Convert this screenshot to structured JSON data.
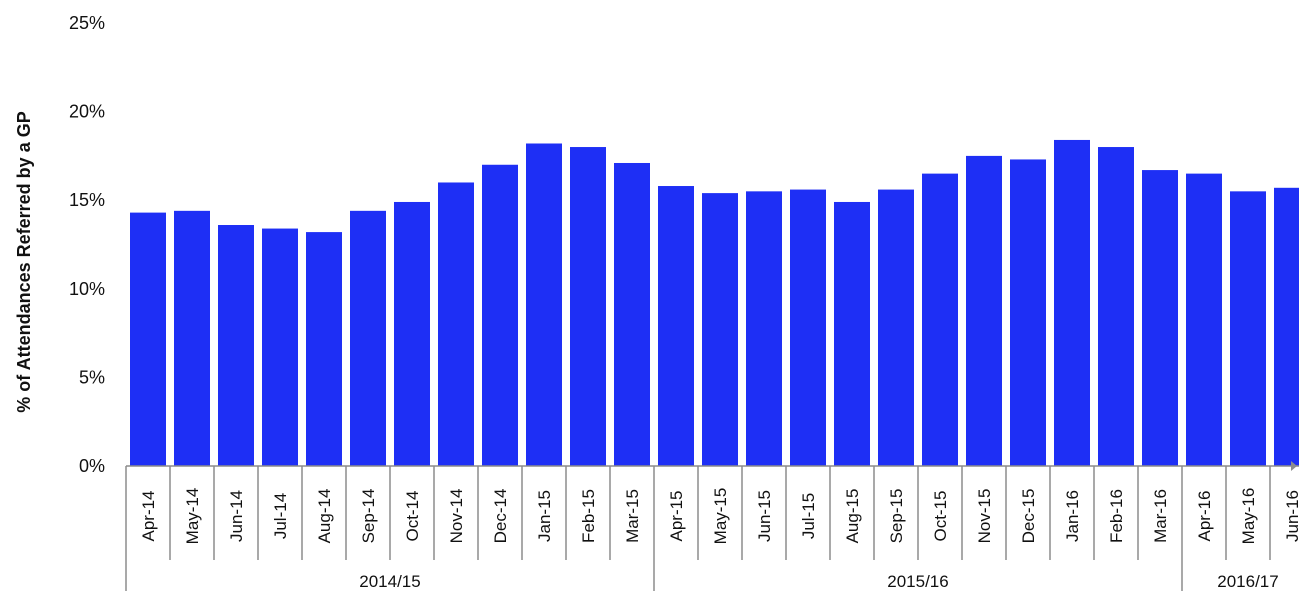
{
  "chart_data": {
    "type": "bar",
    "ylabel": "% of Attendances Referred by a GP",
    "xlabel": "",
    "ylim": [
      0,
      25
    ],
    "yticks": [
      "0%",
      "5%",
      "10%",
      "15%",
      "20%",
      "25%"
    ],
    "ytick_values": [
      0,
      5,
      10,
      15,
      20,
      25
    ],
    "categories": [
      "Apr-14",
      "May-14",
      "Jun-14",
      "Jul-14",
      "Aug-14",
      "Sep-14",
      "Oct-14",
      "Nov-14",
      "Dec-14",
      "Jan-15",
      "Feb-15",
      "Mar-15",
      "Apr-15",
      "May-15",
      "Jun-15",
      "Jul-15",
      "Aug-15",
      "Sep-15",
      "Oct-15",
      "Nov-15",
      "Dec-15",
      "Jan-16",
      "Feb-16",
      "Mar-16",
      "Apr-16",
      "May-16",
      "Jun-16"
    ],
    "values": [
      14.3,
      14.4,
      13.6,
      13.4,
      13.2,
      14.4,
      14.9,
      16.0,
      17.0,
      18.2,
      18.0,
      17.1,
      15.8,
      15.4,
      15.5,
      15.6,
      14.9,
      15.6,
      16.5,
      17.5,
      17.3,
      18.4,
      18.0,
      16.7,
      16.5,
      15.5,
      15.7
    ],
    "groups": [
      {
        "label": "2014/15",
        "start": 0,
        "end": 11
      },
      {
        "label": "2015/16",
        "start": 12,
        "end": 23
      },
      {
        "label": "2016/17",
        "start": 24,
        "end": 26
      }
    ],
    "bar_color": "#1e2ff5",
    "grid": false,
    "legend": "none"
  }
}
